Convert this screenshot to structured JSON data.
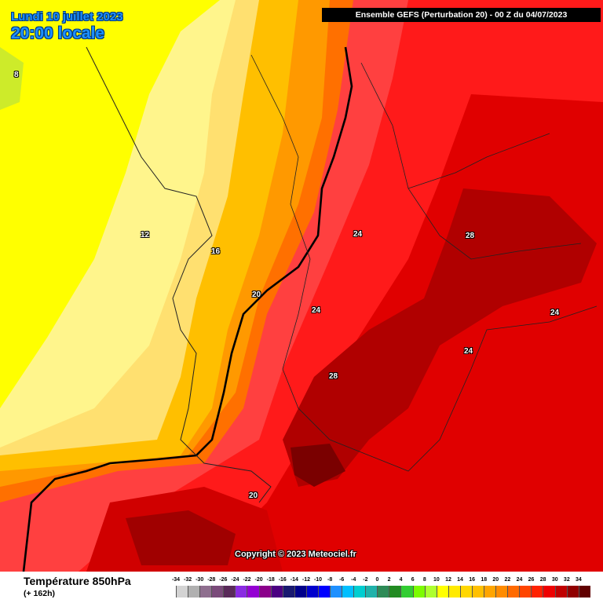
{
  "header": {
    "date_line": "Lundi 10 juillet 2023",
    "time_line": "20:00 locale",
    "run_title": "Ensemble GEFS  (Perturbation 20)  -  00 Z du 04/07/2023"
  },
  "map": {
    "isotherm_labels": [
      "8",
      "12",
      "16",
      "20",
      "24",
      "24",
      "28",
      "24",
      "24",
      "28",
      "20"
    ]
  },
  "copyright": "Copyright © 2023 Meteociel.fr",
  "footer": {
    "variable": "Température 850hPa",
    "lead": "(+ 162h)"
  },
  "legend": {
    "ticks": [
      "-34",
      "-32",
      "-30",
      "-28",
      "-26",
      "-24",
      "-22",
      "-20",
      "-18",
      "-16",
      "-14",
      "-12",
      "-10",
      "-8",
      "-6",
      "-4",
      "-2",
      "0",
      "2",
      "4",
      "6",
      "8",
      "10",
      "12",
      "14",
      "16",
      "18",
      "20",
      "22",
      "24",
      "26",
      "28",
      "30",
      "32",
      "34"
    ],
    "colors": [
      "#d3d3d3",
      "#b0b0b0",
      "#8f6f8f",
      "#7a4a7a",
      "#5a2a5a",
      "#8a2be2",
      "#9400d3",
      "#8b008b",
      "#4b0082",
      "#191970",
      "#00008b",
      "#0000cd",
      "#0000ff",
      "#1e90ff",
      "#00bfff",
      "#00ced1",
      "#20b2aa",
      "#2e8b57",
      "#228b22",
      "#32cd32",
      "#7cfc00",
      "#adff2f",
      "#ffff00",
      "#ffea00",
      "#ffd700",
      "#ffc000",
      "#ffa500",
      "#ff8c00",
      "#ff6a00",
      "#ff4500",
      "#ff2200",
      "#ee0000",
      "#c00000",
      "#900000",
      "#600000"
    ]
  }
}
